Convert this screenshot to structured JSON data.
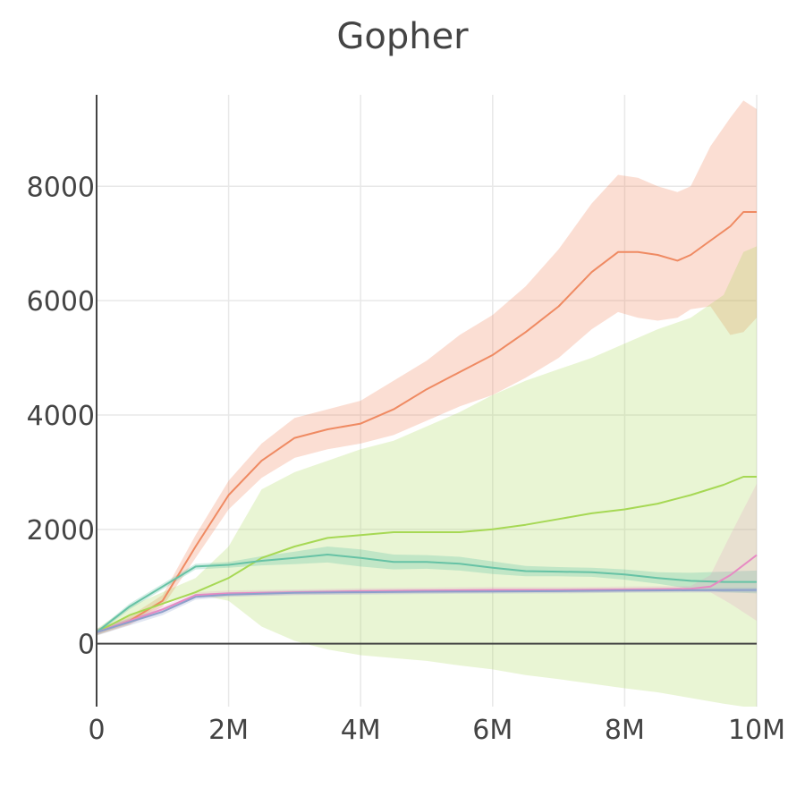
{
  "chart_data": {
    "type": "line",
    "title": "Gopher",
    "xlabel": "",
    "ylabel": "",
    "xlim": [
      0,
      10000000
    ],
    "ylim": [
      -1100,
      9600
    ],
    "x_ticks": [
      {
        "value": 0,
        "label": "0"
      },
      {
        "value": 2000000,
        "label": "2M"
      },
      {
        "value": 4000000,
        "label": "4M"
      },
      {
        "value": 6000000,
        "label": "6M"
      },
      {
        "value": 8000000,
        "label": "8M"
      },
      {
        "value": 10000000,
        "label": "10M"
      }
    ],
    "y_ticks": [
      {
        "value": 0,
        "label": "0"
      },
      {
        "value": 2000,
        "label": "2000"
      },
      {
        "value": 4000,
        "label": "4000"
      },
      {
        "value": 6000,
        "label": "6000"
      },
      {
        "value": 8000,
        "label": "8000"
      }
    ],
    "grid": true,
    "legend": "none",
    "series": [
      {
        "color": "#ef8a62",
        "band_opacity": 0.28,
        "x": [
          0,
          500000,
          1000000,
          1500000,
          2000000,
          2500000,
          3000000,
          3500000,
          4000000,
          4500000,
          5000000,
          5500000,
          6000000,
          6500000,
          7000000,
          7500000,
          7900000,
          8200000,
          8500000,
          8800000,
          9000000,
          9300000,
          9600000,
          9800000,
          10000000
        ],
        "y": [
          200,
          400,
          750,
          1700,
          2600,
          3200,
          3600,
          3750,
          3850,
          4100,
          4450,
          4750,
          5050,
          5450,
          5900,
          6500,
          6850,
          6850,
          6800,
          6700,
          6800,
          7050,
          7300,
          7550,
          7550
        ],
        "lower": [
          150,
          330,
          650,
          1500,
          2350,
          2900,
          3250,
          3400,
          3500,
          3650,
          3900,
          4150,
          4350,
          4650,
          5000,
          5500,
          5800,
          5700,
          5650,
          5700,
          5850,
          5900,
          5400,
          5450,
          5700
        ],
        "upper": [
          260,
          480,
          850,
          1900,
          2850,
          3500,
          3950,
          4100,
          4250,
          4600,
          4950,
          5400,
          5750,
          6250,
          6900,
          7700,
          8200,
          8150,
          8000,
          7900,
          8000,
          8700,
          9200,
          9500,
          9350
        ]
      },
      {
        "color": "#a6d854",
        "band_opacity": 0.25,
        "x": [
          0,
          500000,
          1000000,
          1500000,
          2000000,
          2500000,
          3000000,
          3500000,
          4000000,
          4500000,
          5000000,
          5500000,
          6000000,
          6500000,
          7000000,
          7500000,
          8000000,
          8500000,
          9000000,
          9500000,
          9800000,
          10000000
        ],
        "y": [
          200,
          500,
          700,
          900,
          1150,
          1500,
          1700,
          1850,
          1900,
          1950,
          1950,
          1950,
          2000,
          2080,
          2180,
          2280,
          2350,
          2450,
          2600,
          2780,
          2920,
          2920
        ],
        "lower": [
          150,
          350,
          700,
          870,
          750,
          300,
          50,
          -100,
          -200,
          -250,
          -300,
          -380,
          -450,
          -550,
          -620,
          -700,
          -780,
          -850,
          -950,
          -1050,
          -1100,
          -1100
        ],
        "upper": [
          260,
          650,
          900,
          1150,
          1700,
          2700,
          3000,
          3200,
          3400,
          3550,
          3800,
          4050,
          4350,
          4600,
          4800,
          5000,
          5250,
          5500,
          5700,
          6100,
          6850,
          6950
        ]
      },
      {
        "color": "#66c2a5",
        "band_opacity": 0.3,
        "x": [
          0,
          500000,
          1000000,
          1500000,
          2000000,
          2500000,
          3000000,
          3500000,
          4000000,
          4500000,
          5000000,
          5500000,
          6000000,
          6500000,
          7000000,
          7500000,
          8000000,
          8500000,
          9000000,
          9500000,
          10000000
        ],
        "y": [
          200,
          650,
          1000,
          1350,
          1380,
          1450,
          1500,
          1560,
          1500,
          1430,
          1430,
          1400,
          1330,
          1270,
          1260,
          1250,
          1210,
          1150,
          1100,
          1080,
          1080
        ],
        "lower": [
          170,
          600,
          950,
          1300,
          1330,
          1370,
          1390,
          1420,
          1350,
          1300,
          1310,
          1280,
          1220,
          1180,
          1180,
          1170,
          1120,
          1050,
          960,
          900,
          880
        ],
        "upper": [
          230,
          700,
          1050,
          1400,
          1430,
          1530,
          1610,
          1700,
          1650,
          1560,
          1550,
          1520,
          1440,
          1360,
          1340,
          1330,
          1300,
          1250,
          1240,
          1260,
          1280
        ]
      },
      {
        "color": "#e78ac3",
        "band_opacity": 0.2,
        "x": [
          0,
          500000,
          1000000,
          1500000,
          2000000,
          3000000,
          4000000,
          5000000,
          6000000,
          7000000,
          8000000,
          9000000,
          9300000,
          9600000,
          10000000
        ],
        "y": [
          200,
          400,
          600,
          850,
          880,
          900,
          920,
          930,
          940,
          940,
          950,
          960,
          1000,
          1200,
          1550
        ],
        "lower": [
          160,
          350,
          540,
          800,
          830,
          850,
          870,
          880,
          890,
          890,
          900,
          910,
          900,
          700,
          400
        ],
        "upper": [
          240,
          450,
          660,
          900,
          930,
          950,
          970,
          980,
          990,
          990,
          1000,
          1010,
          1200,
          1900,
          2800
        ]
      },
      {
        "color": "#8da0cb",
        "band_opacity": 0.25,
        "x": [
          0,
          500000,
          1000000,
          1500000,
          2000000,
          3000000,
          4000000,
          5000000,
          6000000,
          7000000,
          8000000,
          9000000,
          10000000
        ],
        "y": [
          200,
          380,
          560,
          820,
          860,
          890,
          900,
          910,
          915,
          920,
          930,
          935,
          940
        ],
        "lower": [
          140,
          320,
          500,
          770,
          820,
          850,
          860,
          870,
          875,
          880,
          890,
          895,
          900
        ],
        "upper": [
          260,
          440,
          620,
          870,
          900,
          930,
          940,
          950,
          955,
          960,
          970,
          975,
          980
        ]
      }
    ]
  }
}
